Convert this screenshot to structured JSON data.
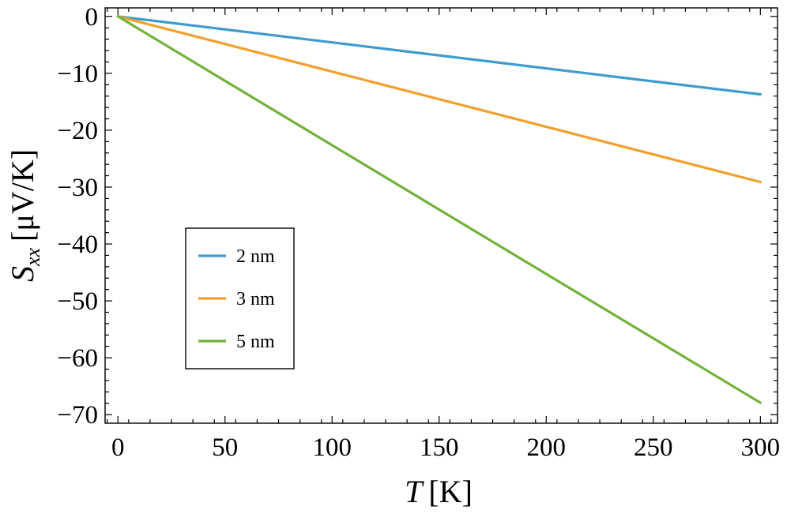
{
  "chart_data": {
    "type": "line",
    "title": "",
    "xlabel": "T [K]",
    "xlabel_var": "T",
    "xlabel_unit": "[K]",
    "ylabel": "S_xx [μV/K]",
    "ylabel_var": "S",
    "ylabel_sub": "xx",
    "ylabel_unit": "[μV/K]",
    "xlim": [
      -6,
      308
    ],
    "ylim": [
      -71.5,
      1.5
    ],
    "xticks": [
      0,
      50,
      100,
      150,
      200,
      250,
      300
    ],
    "xtick_labels": [
      "0",
      "50",
      "100",
      "150",
      "200",
      "250",
      "300"
    ],
    "yticks": [
      0,
      -10,
      -20,
      -30,
      -40,
      -50,
      -60,
      -70
    ],
    "ytick_labels": [
      "0",
      "−10",
      "−20",
      "−30",
      "−40",
      "−50",
      "−60",
      "−70"
    ],
    "grid": false,
    "legend_position": "lower-left",
    "series": [
      {
        "name": "2 nm",
        "color": "#3e9bcb",
        "x": [
          0,
          300
        ],
        "y": [
          0,
          -13.7
        ]
      },
      {
        "name": "3 nm",
        "color": "#f0a12e",
        "x": [
          0,
          300
        ],
        "y": [
          0,
          -29.1
        ]
      },
      {
        "name": "5 nm",
        "color": "#72b23b",
        "x": [
          0,
          300
        ],
        "y": [
          0,
          -67.9
        ]
      }
    ]
  }
}
